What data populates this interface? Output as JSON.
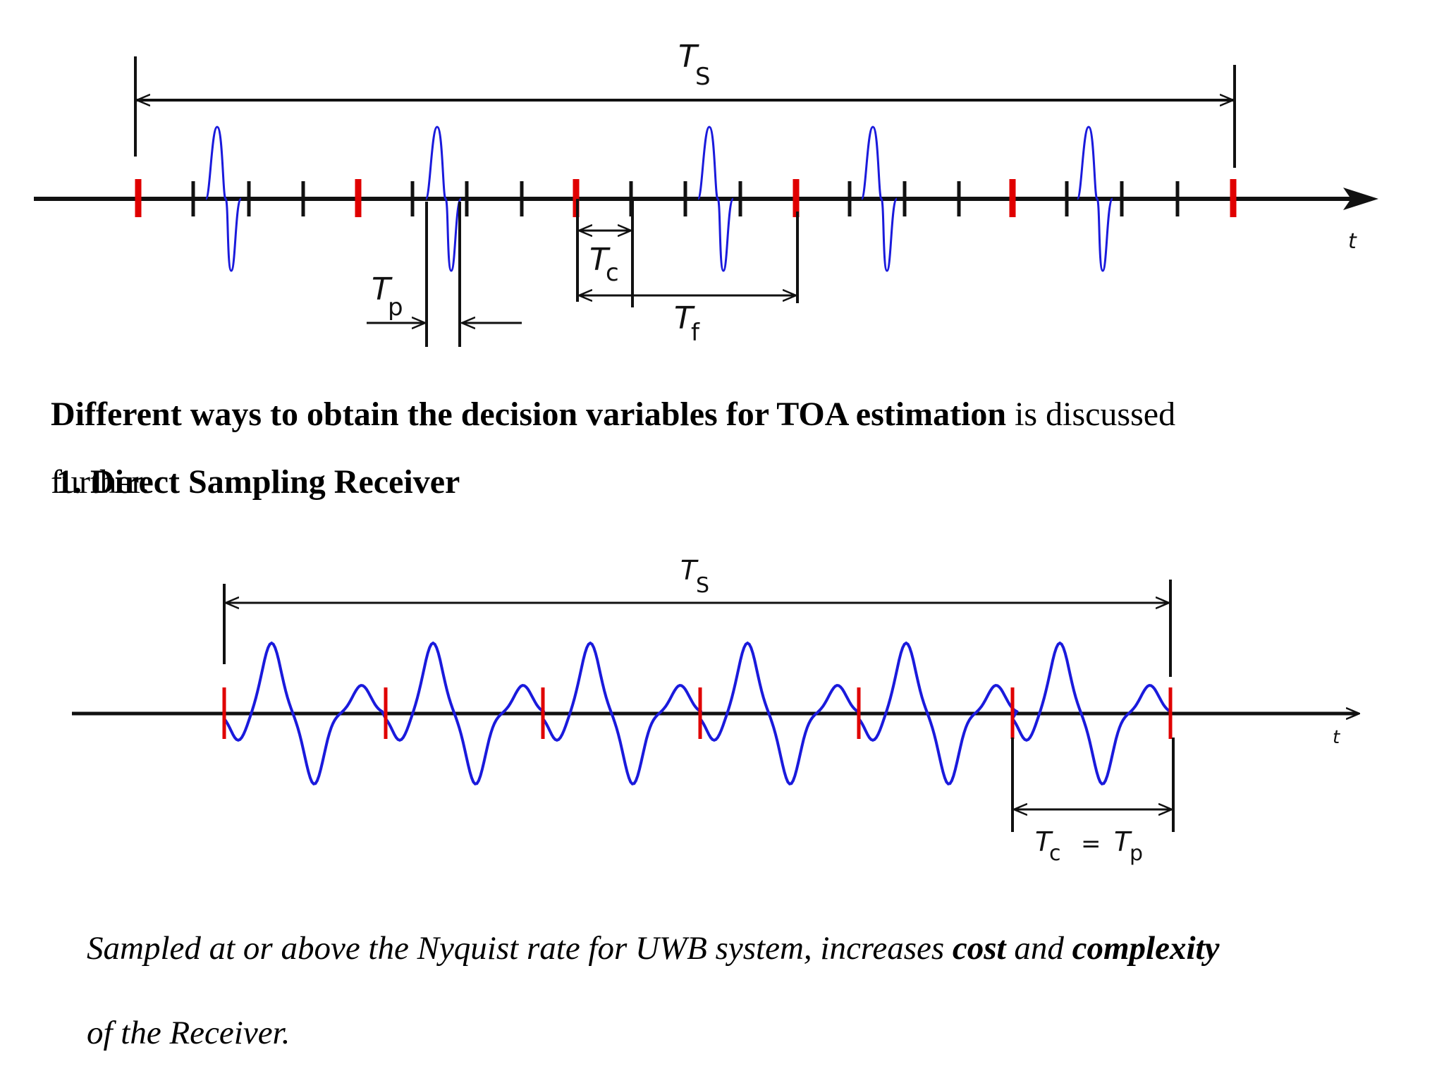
{
  "diagram1": {
    "ts_label": "T",
    "ts_sub": "S",
    "tc_label": "T",
    "tc_sub": "c",
    "tp_label": "T",
    "tp_sub": "p",
    "tf_label": "T",
    "tf_sub": "f",
    "t_axis": "t"
  },
  "text": {
    "line1_bold": "Different ways to obtain the decision variables for TOA estimation",
    "line1_rest": " is discussed",
    "line2_overlap": "further.",
    "heading": "1. Direct Sampling Receiver",
    "desc_part1": "Sampled at or above the Nyquist rate for UWB system, increases ",
    "desc_bold1": "cost",
    "desc_part2": " and ",
    "desc_bold2": "complexity",
    "desc_line2": "of the Receiver."
  },
  "diagram2": {
    "ts_label": "T",
    "ts_sub": "S",
    "tc_label": "T",
    "tc_sub": "c",
    "eq": "=",
    "tp_label": "T",
    "tp_sub": "p",
    "t_axis": "t"
  },
  "colors": {
    "axis": "#000000",
    "frame_marker": "#e00000",
    "pulse": "#1a1adc"
  }
}
